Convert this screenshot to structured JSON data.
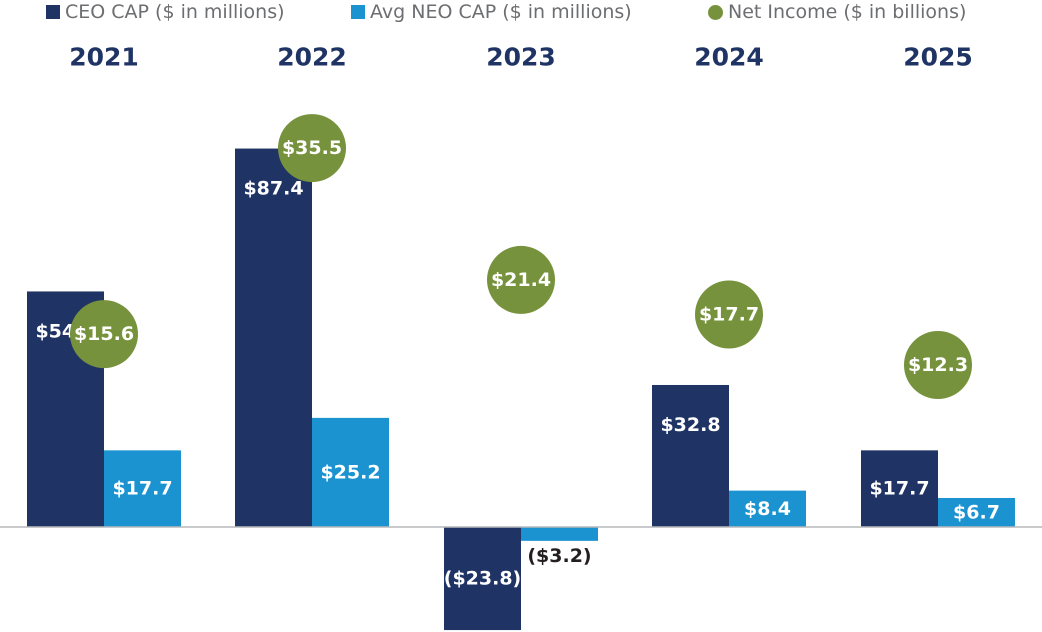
{
  "chart_data": {
    "type": "bar",
    "categories": [
      "2021",
      "2022",
      "2023",
      "2024",
      "2025"
    ],
    "series": [
      {
        "name": "CEO CAP ($ in millions)",
        "values": [
          54.4,
          87.4,
          -23.8,
          32.8,
          17.7
        ],
        "labels": [
          "$54.4",
          "$87.4",
          "($23.8)",
          "$32.8",
          "$17.7"
        ],
        "color": "#1f3464"
      },
      {
        "name": "Avg NEO CAP ($ in millions)",
        "values": [
          17.7,
          25.2,
          -3.2,
          8.4,
          6.7
        ],
        "labels": [
          "$17.7",
          "$25.2",
          "($3.2)",
          "$8.4",
          "$6.7"
        ],
        "color": "#1b93d1"
      },
      {
        "name": "Net Income ($ in billions)",
        "type": "scatter",
        "values": [
          15.6,
          35.5,
          21.4,
          17.7,
          12.3
        ],
        "labels": [
          "$15.6",
          "$35.5",
          "$21.4",
          "$17.7",
          "$12.3"
        ],
        "color": "#76923c"
      }
    ],
    "legend_position": "top",
    "grid": false,
    "category_label_color": "#1f3464"
  }
}
